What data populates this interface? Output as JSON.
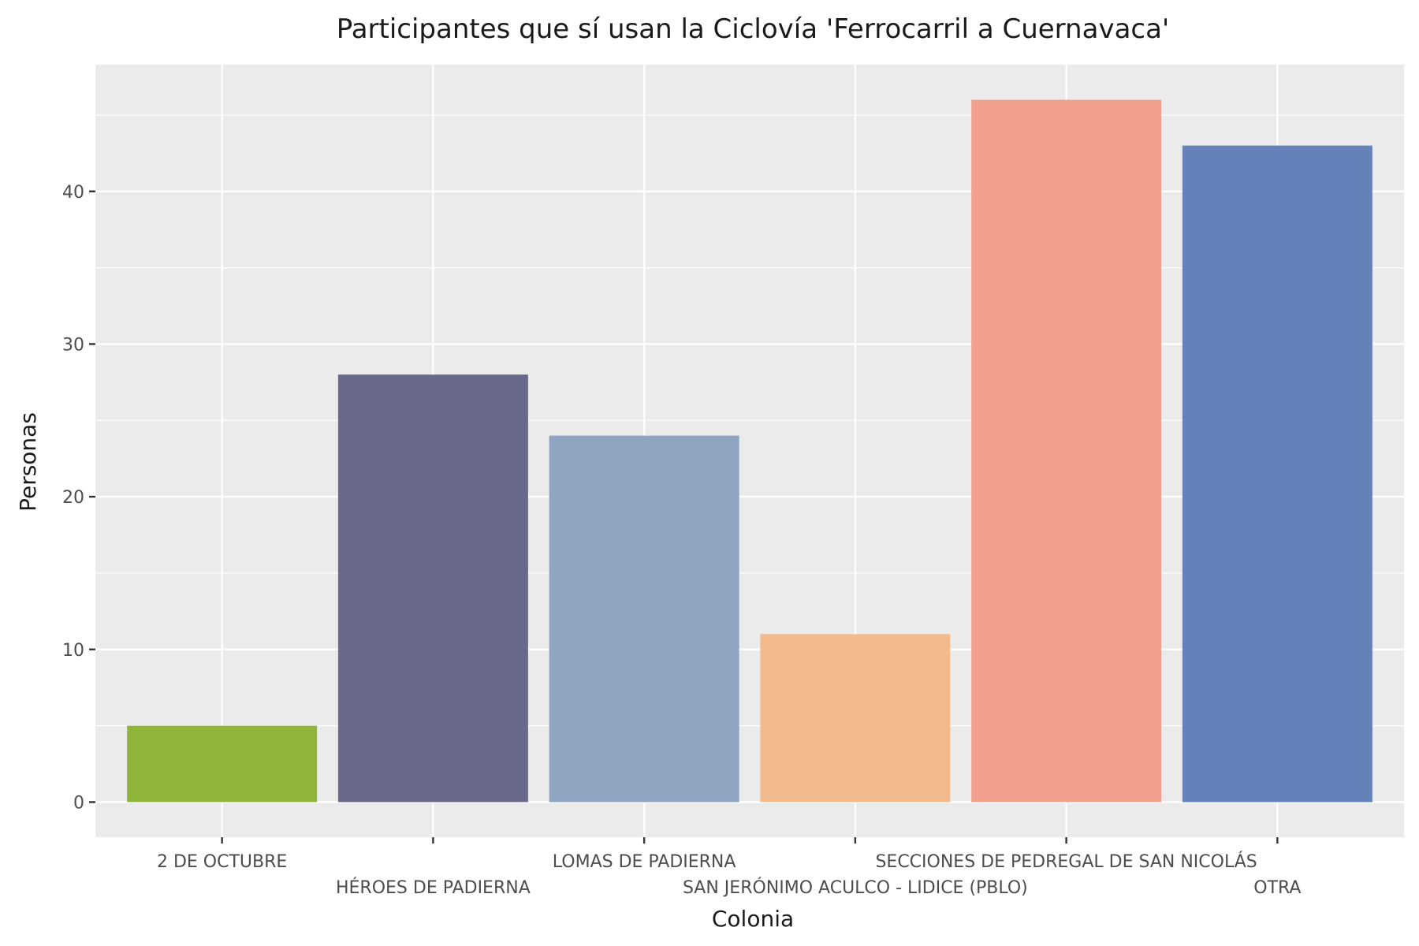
{
  "chart_data": {
    "type": "bar",
    "title": "Participantes que sí usan la Ciclovía 'Ferrocarril a Cuernavaca'",
    "xlabel": "Colonia",
    "ylabel": "Personas",
    "categories": [
      "2 DE OCTUBRE",
      "HÉROES DE PADIERNA",
      "LOMAS DE PADIERNA",
      "SAN JERÓNIMO ACULCO - LIDICE (PBLO)",
      "SECCIONES DE PEDREGAL DE SAN NICOLÁS",
      "OTRA"
    ],
    "values": [
      5,
      28,
      24,
      11,
      46,
      43
    ],
    "colors": [
      "#8fb43a",
      "#69698b",
      "#8fa4c1",
      "#f3bb8d",
      "#f1a08e",
      "#6481b9"
    ],
    "ylim": [
      -2.3,
      48.3
    ],
    "yticks": [
      0,
      10,
      20,
      30,
      40
    ],
    "grid": true,
    "legend": "none",
    "panel_background": "#ebebeb",
    "grid_color": "#ffffff"
  }
}
